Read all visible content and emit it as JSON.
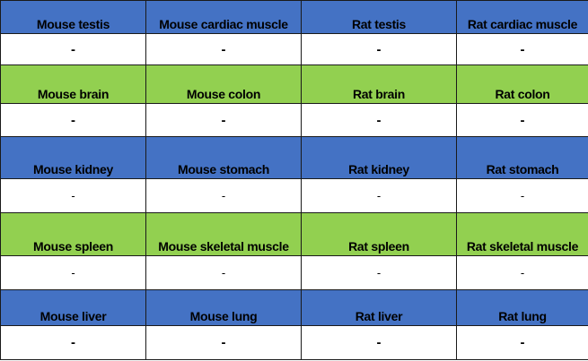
{
  "colors": {
    "blue": "#4472c4",
    "green": "#92d050",
    "white": "#ffffff"
  },
  "rows": [
    {
      "color": "#4472c4",
      "style": "bold",
      "labels": [
        "Mouse testis",
        "Mouse cardiac muscle",
        "Rat testis",
        "Rat cardiac muscle"
      ],
      "values": [
        "-",
        "-",
        "-",
        "-"
      ]
    },
    {
      "color": "#92d050",
      "style": "bold",
      "labels": [
        "Mouse brain",
        "Mouse colon",
        "Rat brain",
        "Rat colon"
      ],
      "values": [
        "-",
        "-",
        "-",
        "-"
      ]
    },
    {
      "color": "#4472c4",
      "style": "light",
      "labels": [
        "Mouse kidney",
        "Mouse stomach",
        "Rat kidney",
        "Rat stomach"
      ],
      "values": [
        "-",
        "-",
        "-",
        "-"
      ]
    },
    {
      "color": "#92d050",
      "style": "light",
      "labels": [
        "Mouse spleen",
        "Mouse skeletal muscle",
        "Rat spleen",
        "Rat skeletal muscle"
      ],
      "values": [
        "-",
        "-",
        "-",
        "-"
      ]
    },
    {
      "color": "#4472c4",
      "style": "bold",
      "labels": [
        "Mouse liver",
        "Mouse lung",
        "Rat liver",
        "Rat lung"
      ],
      "values": [
        "-",
        "-",
        "-",
        "-"
      ]
    }
  ]
}
